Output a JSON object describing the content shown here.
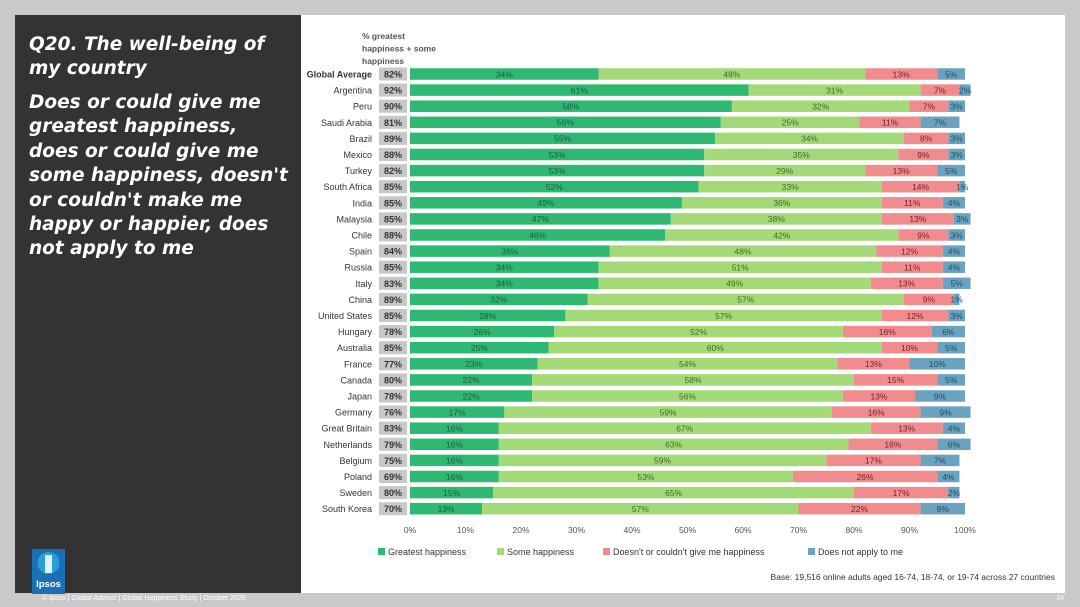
{
  "slide": {
    "title": "Q20. The well-being of my country",
    "subtitle": "Does or could give me greatest happiness, does or could give me some happiness, doesn't or couldn't make me happy or happier, does not apply to me",
    "logo": "Ipsos",
    "footer": "© Ipsos | Global Advisor | Global Happiness Study | October 2020",
    "page_number": "34",
    "base_note": "Base: 19,516 online adults aged 16-74, 18-74, or 19-74 across 27 countries",
    "summary_header": [
      "% greatest",
      "happiness + some",
      "happiness"
    ]
  },
  "chart_data": {
    "type": "bar",
    "orientation": "horizontal",
    "stacked": true,
    "categories": [
      "Global Average",
      "Argentina",
      "Peru",
      "Saudi Arabia",
      "Brazil",
      "Mexico",
      "Turkey",
      "South Africa",
      "India",
      "Malaysia",
      "Chile",
      "Spain",
      "Russia",
      "Italy",
      "China",
      "United States",
      "Hungary",
      "Australia",
      "France",
      "Canada",
      "Japan",
      "Germany",
      "Great Britain",
      "Netherlands",
      "Belgium",
      "Poland",
      "Sweden",
      "South Korea"
    ],
    "summary": [
      "82%",
      "92%",
      "90%",
      "81%",
      "89%",
      "88%",
      "82%",
      "85%",
      "85%",
      "85%",
      "88%",
      "84%",
      "85%",
      "83%",
      "89%",
      "85%",
      "78%",
      "85%",
      "77%",
      "80%",
      "78%",
      "76%",
      "83%",
      "79%",
      "75%",
      "69%",
      "80%",
      "70%"
    ],
    "series": [
      {
        "name": "Greatest happiness",
        "color": "#2eb872",
        "label_color": "#1b5e3c",
        "values": [
          34,
          61,
          58,
          56,
          55,
          53,
          53,
          52,
          49,
          47,
          46,
          36,
          34,
          34,
          32,
          28,
          26,
          25,
          23,
          22,
          22,
          17,
          16,
          16,
          16,
          16,
          15,
          13
        ]
      },
      {
        "name": "Some happiness",
        "color": "#a3d977",
        "label_color": "#3f6b25",
        "values": [
          48,
          31,
          32,
          25,
          34,
          35,
          29,
          33,
          36,
          38,
          42,
          48,
          51,
          49,
          57,
          57,
          52,
          60,
          54,
          58,
          56,
          59,
          67,
          63,
          59,
          53,
          65,
          57
        ]
      },
      {
        "name": "Doesn't or couldn't give me happiness",
        "color": "#f28b8e",
        "label_color": "#6e2428",
        "values": [
          13,
          7,
          7,
          11,
          8,
          9,
          13,
          14,
          11,
          13,
          9,
          12,
          11,
          13,
          9,
          12,
          16,
          10,
          13,
          15,
          13,
          16,
          13,
          16,
          17,
          26,
          17,
          22
        ]
      },
      {
        "name": "Does not apply to me",
        "color": "#6aa2bf",
        "label_color": "#1f4e66",
        "values": [
          5,
          2,
          3,
          7,
          3,
          3,
          5,
          1,
          4,
          3,
          3,
          4,
          4,
          5,
          1,
          3,
          6,
          5,
          10,
          5,
          9,
          9,
          4,
          6,
          7,
          4,
          2,
          8
        ]
      }
    ],
    "x_ticks": [
      "0%",
      "10%",
      "20%",
      "30%",
      "40%",
      "50%",
      "60%",
      "70%",
      "80%",
      "90%",
      "100%"
    ],
    "xlim": [
      0,
      100
    ],
    "legend_position": "bottom"
  }
}
